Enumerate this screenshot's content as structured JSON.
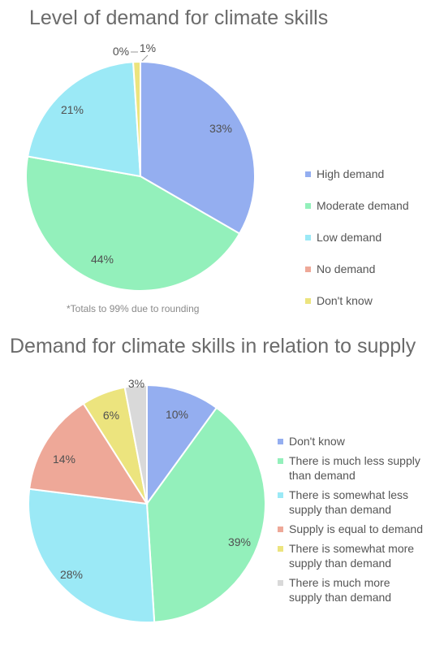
{
  "chart_data": [
    {
      "type": "pie",
      "title": "Level of demand for climate skills",
      "note": "*Totals to 99% due to rounding",
      "legend_position": "right",
      "slices": [
        {
          "label": "High demand",
          "value": 33,
          "display": "33%",
          "color": "#94aef0"
        },
        {
          "label": "Moderate demand",
          "value": 44,
          "display": "44%",
          "color": "#93f0bb"
        },
        {
          "label": "Low demand",
          "value": 21,
          "display": "21%",
          "color": "#9be9f6"
        },
        {
          "label": "No demand",
          "value": 0,
          "display": "0%",
          "color": "#eea898"
        },
        {
          "label": "Don't know",
          "value": 1,
          "display": "1%",
          "color": "#ece47e"
        }
      ]
    },
    {
      "type": "pie",
      "title": "Demand for climate skills in relation to supply",
      "legend_position": "right",
      "slices": [
        {
          "label": "Don't know",
          "value": 10,
          "display": "10%",
          "color": "#94aef0"
        },
        {
          "label": "There is much less supply than demand",
          "lines": [
            "There is much less supply",
            "than demand"
          ],
          "value": 39,
          "display": "39%",
          "color": "#93f0bb"
        },
        {
          "label": "There is somewhat less supply than demand",
          "lines": [
            "There is somewhat less",
            "supply than demand"
          ],
          "value": 28,
          "display": "28%",
          "color": "#9be9f6"
        },
        {
          "label": "Supply is equal to demand",
          "lines": [
            "Supply is equal to demand"
          ],
          "value": 14,
          "display": "14%",
          "color": "#eea898"
        },
        {
          "label": "There is somewhat more supply than demand",
          "lines": [
            "There is somewhat more",
            "supply than demand"
          ],
          "value": 6,
          "display": "6%",
          "color": "#ece47e"
        },
        {
          "label": "There is much more supply than demand",
          "lines": [
            "There is much more",
            "supply than demand"
          ],
          "value": 3,
          "display": "3%",
          "color": "#d9d9d9"
        }
      ]
    }
  ]
}
